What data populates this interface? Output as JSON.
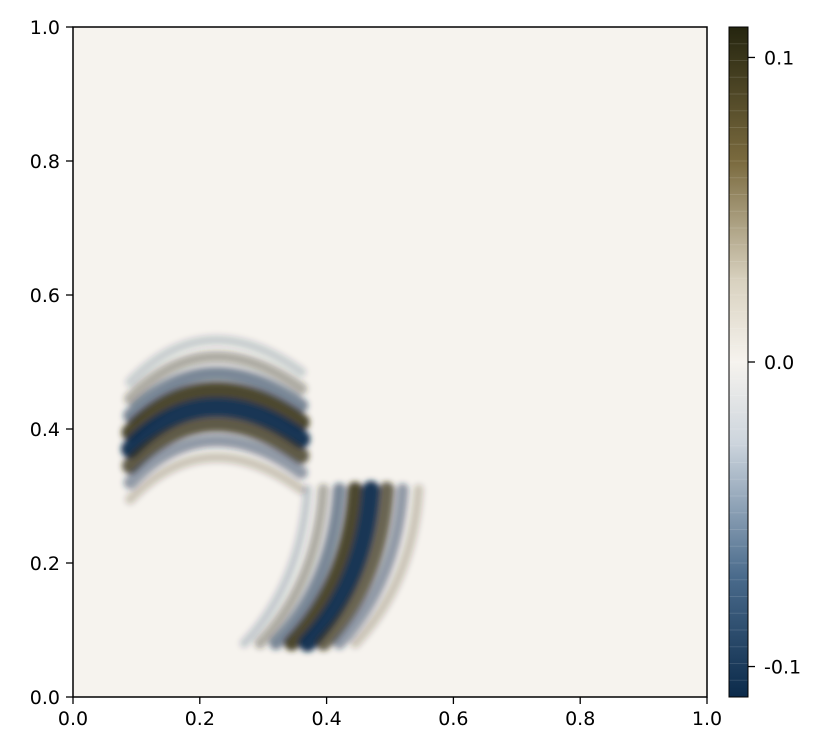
{
  "chart_data": {
    "type": "heatmap",
    "title": "",
    "xlabel": "",
    "ylabel": "",
    "xlim": [
      0.0,
      1.0
    ],
    "ylim": [
      0.0,
      1.0
    ],
    "x_ticks": [
      "0.0",
      "0.2",
      "0.4",
      "0.6",
      "0.8",
      "1.0"
    ],
    "y_ticks": [
      "0.0",
      "0.2",
      "0.4",
      "0.6",
      "0.8",
      "1.0"
    ],
    "grid": false,
    "background_value": 0.0,
    "colorbar": {
      "range": [
        -0.11,
        0.11
      ],
      "ticks": [
        {
          "value": 0.1,
          "label": "0.1"
        },
        {
          "value": 0.0,
          "label": "0.0"
        },
        {
          "value": -0.1,
          "label": "-0.1"
        }
      ],
      "colors": {
        "negative": "#0b2a4a",
        "zero": "#f6f3ee",
        "positive": "#25250f"
      }
    },
    "wave_packets": [
      {
        "name": "upper-left packet",
        "center": [
          0.21,
          0.42
        ],
        "extent_x": [
          0.08,
          0.36
        ],
        "extent_y": [
          0.3,
          0.55
        ],
        "wavefront": "arcs curving downward",
        "peak_amplitude": 0.1
      },
      {
        "name": "lower packet",
        "center": [
          0.43,
          0.17
        ],
        "extent_x": [
          0.3,
          0.58
        ],
        "extent_y": [
          0.07,
          0.32
        ],
        "wavefront": "diagonal stripes",
        "peak_amplitude": 0.1
      }
    ]
  }
}
